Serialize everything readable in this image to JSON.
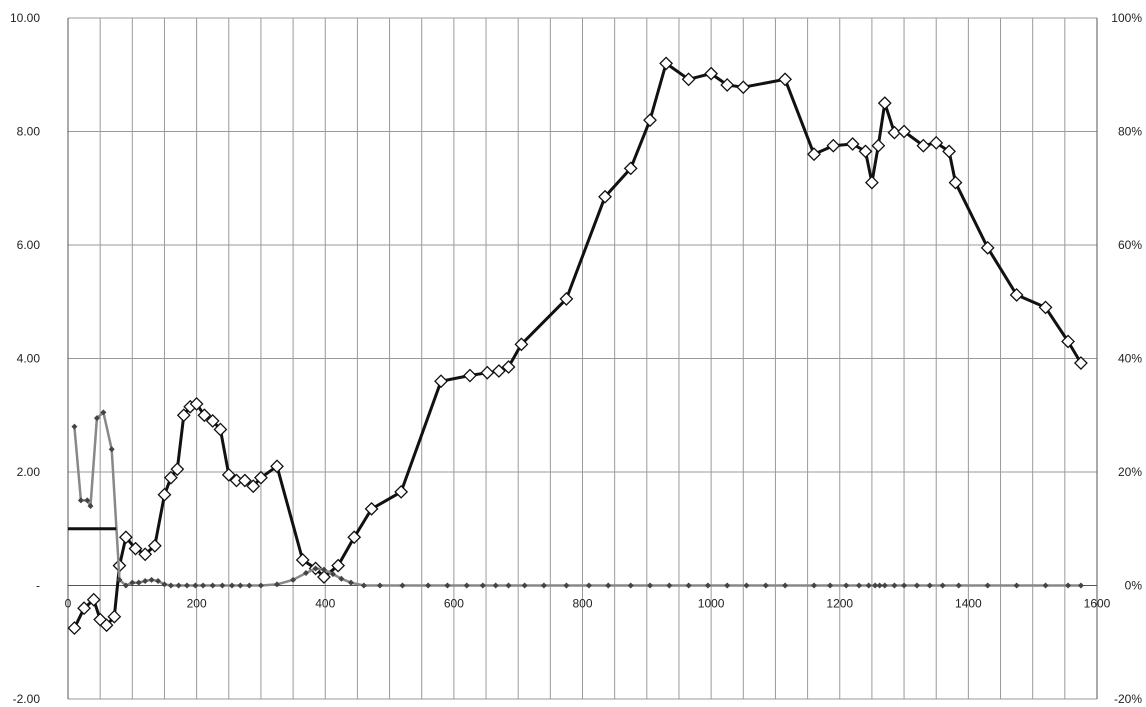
{
  "chart_data": {
    "type": "line",
    "title": "",
    "xlabel": "",
    "ylabel": "",
    "xlim": [
      0,
      1600
    ],
    "ylim": [
      -2,
      10
    ],
    "y2lim": [
      -20,
      100
    ],
    "x_ticks": [
      "0",
      "200",
      "400",
      "600",
      "800",
      "1000",
      "1200",
      "1400",
      "1600"
    ],
    "y_ticks": [
      "-2.00",
      "-",
      "2.00",
      "4.00",
      "6.00",
      "8.00",
      "10.00"
    ],
    "y2_ticks": [
      "-20%",
      "0%",
      "20%",
      "40%",
      "60%",
      "80%",
      "100%"
    ],
    "grid": true,
    "series": [
      {
        "axis": "left",
        "color": "#111111",
        "marker": "open-diamond",
        "points": [
          [
            10,
            -0.75
          ],
          [
            25,
            -0.4
          ],
          [
            40,
            -0.25
          ],
          [
            50,
            -0.6
          ],
          [
            60,
            -0.7
          ],
          [
            72,
            -0.55
          ],
          [
            80,
            0.35
          ],
          [
            90,
            0.85
          ],
          [
            105,
            0.65
          ],
          [
            120,
            0.55
          ],
          [
            135,
            0.7
          ],
          [
            150,
            1.6
          ],
          [
            160,
            1.9
          ],
          [
            170,
            2.05
          ],
          [
            180,
            3.0
          ],
          [
            190,
            3.15
          ],
          [
            200,
            3.2
          ],
          [
            212,
            3.0
          ],
          [
            225,
            2.9
          ],
          [
            237,
            2.75
          ],
          [
            250,
            1.95
          ],
          [
            262,
            1.85
          ],
          [
            275,
            1.85
          ],
          [
            288,
            1.75
          ],
          [
            300,
            1.9
          ],
          [
            325,
            2.1
          ],
          [
            365,
            0.45
          ],
          [
            385,
            0.3
          ],
          [
            398,
            0.15
          ],
          [
            420,
            0.35
          ],
          [
            445,
            0.85
          ],
          [
            472,
            1.35
          ],
          [
            518,
            1.65
          ],
          [
            580,
            3.6
          ],
          [
            625,
            3.7
          ],
          [
            652,
            3.75
          ],
          [
            670,
            3.78
          ],
          [
            685,
            3.85
          ],
          [
            705,
            4.25
          ],
          [
            775,
            5.05
          ],
          [
            835,
            6.85
          ],
          [
            875,
            7.35
          ],
          [
            905,
            8.2
          ],
          [
            930,
            9.2
          ],
          [
            965,
            8.92
          ],
          [
            1000,
            9.02
          ],
          [
            1025,
            8.82
          ],
          [
            1050,
            8.78
          ],
          [
            1115,
            8.92
          ],
          [
            1160,
            7.6
          ],
          [
            1190,
            7.75
          ],
          [
            1220,
            7.78
          ],
          [
            1240,
            7.65
          ],
          [
            1250,
            7.1
          ],
          [
            1260,
            7.75
          ],
          [
            1270,
            8.5
          ],
          [
            1285,
            7.98
          ],
          [
            1300,
            8.0
          ],
          [
            1330,
            7.75
          ],
          [
            1350,
            7.8
          ],
          [
            1370,
            7.65
          ],
          [
            1380,
            7.1
          ],
          [
            1430,
            5.95
          ],
          [
            1475,
            5.12
          ],
          [
            1520,
            4.9
          ],
          [
            1555,
            4.3
          ],
          [
            1575,
            3.92
          ]
        ]
      },
      {
        "axis": "left",
        "color": "#888888",
        "marker": "small-dot",
        "points": [
          [
            10,
            2.8
          ],
          [
            20,
            1.5
          ],
          [
            30,
            1.5
          ],
          [
            35,
            1.4
          ],
          [
            45,
            2.95
          ],
          [
            55,
            3.05
          ],
          [
            68,
            2.4
          ],
          [
            80,
            0.1
          ],
          [
            90,
            0.0
          ],
          [
            100,
            0.05
          ],
          [
            110,
            0.05
          ],
          [
            120,
            0.08
          ],
          [
            130,
            0.1
          ],
          [
            140,
            0.08
          ],
          [
            150,
            0.02
          ],
          [
            160,
            0.0
          ],
          [
            172,
            0.0
          ],
          [
            185,
            0.0
          ],
          [
            198,
            0.0
          ],
          [
            210,
            0.0
          ],
          [
            225,
            0.0
          ],
          [
            240,
            0.0
          ],
          [
            255,
            0.0
          ],
          [
            268,
            0.0
          ],
          [
            282,
            0.0
          ],
          [
            300,
            0.0
          ],
          [
            325,
            0.02
          ],
          [
            350,
            0.1
          ],
          [
            370,
            0.22
          ],
          [
            385,
            0.3
          ],
          [
            398,
            0.28
          ],
          [
            412,
            0.2
          ],
          [
            425,
            0.12
          ],
          [
            440,
            0.05
          ],
          [
            460,
            0.0
          ],
          [
            485,
            0.0
          ],
          [
            520,
            0.0
          ],
          [
            560,
            0.0
          ],
          [
            590,
            0.0
          ],
          [
            620,
            0.0
          ],
          [
            645,
            0.0
          ],
          [
            665,
            0.0
          ],
          [
            685,
            0.0
          ],
          [
            710,
            0.0
          ],
          [
            740,
            0.0
          ],
          [
            775,
            0.0
          ],
          [
            810,
            0.0
          ],
          [
            840,
            0.0
          ],
          [
            875,
            0.0
          ],
          [
            905,
            0.0
          ],
          [
            935,
            0.0
          ],
          [
            965,
            0.0
          ],
          [
            995,
            0.0
          ],
          [
            1025,
            0.0
          ],
          [
            1055,
            0.0
          ],
          [
            1085,
            0.0
          ],
          [
            1115,
            0.0
          ],
          [
            1160,
            0.0
          ],
          [
            1185,
            0.0
          ],
          [
            1210,
            0.0
          ],
          [
            1230,
            0.0
          ],
          [
            1245,
            0.0
          ],
          [
            1255,
            0.0
          ],
          [
            1262,
            0.0
          ],
          [
            1270,
            0.0
          ],
          [
            1285,
            0.0
          ],
          [
            1300,
            0.0
          ],
          [
            1320,
            0.0
          ],
          [
            1340,
            0.0
          ],
          [
            1360,
            0.0
          ],
          [
            1385,
            0.0
          ],
          [
            1430,
            0.0
          ],
          [
            1475,
            0.0
          ],
          [
            1520,
            0.0
          ],
          [
            1555,
            0.0
          ],
          [
            1575,
            0.0
          ]
        ]
      },
      {
        "axis": "left",
        "color": "#111111",
        "marker": "none",
        "points": [
          [
            0,
            1.0
          ],
          [
            75,
            1.0
          ]
        ]
      }
    ]
  }
}
